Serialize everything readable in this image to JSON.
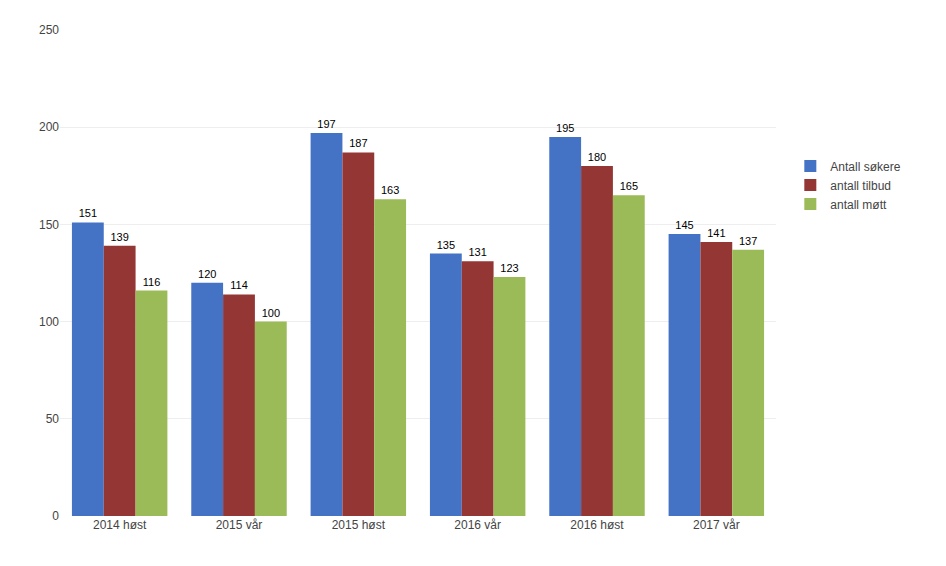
{
  "chart_data": {
    "type": "bar",
    "categories": [
      "2014 høst",
      "2015 vår",
      "2015 høst",
      "2016 vår",
      "2016 høst",
      "2017 vår"
    ],
    "series": [
      {
        "name": "Antall søkere",
        "color": "#4472C4",
        "values": [
          151,
          120,
          197,
          135,
          195,
          145
        ]
      },
      {
        "name": "antall tilbud",
        "color": "#943634",
        "values": [
          139,
          114,
          187,
          131,
          180,
          141
        ]
      },
      {
        "name": "antall møtt",
        "color": "#9BBB59",
        "values": [
          116,
          100,
          163,
          123,
          165,
          137
        ]
      }
    ],
    "ylim": [
      0,
      250
    ],
    "yticks": [
      0,
      50,
      100,
      150,
      200,
      250
    ],
    "grid": true,
    "legend": "right",
    "data_labels": true
  }
}
